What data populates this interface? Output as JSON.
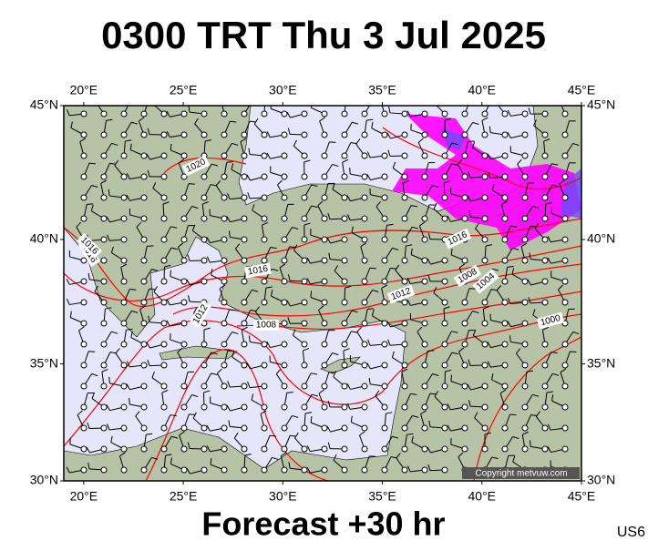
{
  "header": {
    "title": "0300 TRT Thu 3 Jul 2025"
  },
  "map": {
    "lon_range": [
      19,
      45
    ],
    "lat_range": [
      30,
      45
    ],
    "lon_ticks": [
      {
        "value": 20,
        "label": "20°E"
      },
      {
        "value": 25,
        "label": "25°E"
      },
      {
        "value": 30,
        "label": "30°E"
      },
      {
        "value": 35,
        "label": "35°E"
      },
      {
        "value": 40,
        "label": "40°E"
      },
      {
        "value": 45,
        "label": "45°E"
      }
    ],
    "lat_ticks": [
      {
        "value": 30,
        "label": "30°N"
      },
      {
        "value": 35,
        "label": "35°N"
      },
      {
        "value": 40,
        "label": "40°N"
      },
      {
        "value": 45,
        "label": "45°N"
      }
    ],
    "isobar_labels": [
      "1020",
      "1016",
      "1016",
      "1016",
      "1012",
      "1012",
      "1008",
      "1008",
      "1004",
      "1000",
      "1016"
    ],
    "copyright": "Copyright metvuw.com"
  },
  "footer": {
    "forecast": "Forecast +30 hr",
    "code": "US6"
  }
}
